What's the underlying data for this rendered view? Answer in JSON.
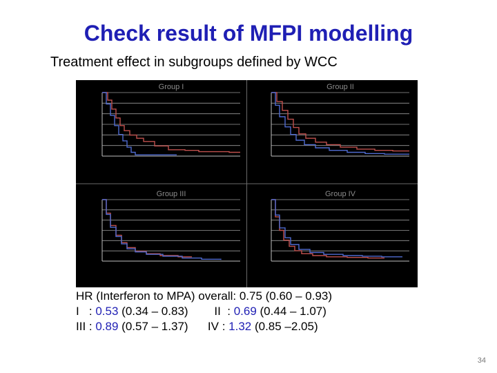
{
  "slide": {
    "title": "Check result of MFPI modelling",
    "subtitle": "Treatment effect in subgroups defined by WCC",
    "page_number": "34"
  },
  "hr": {
    "overall": "HR (Interferon to MPA) overall: 0.75 (0.60 – 0.93)",
    "groups": [
      {
        "label": "I   : ",
        "value": "0.53",
        "ci": " (0.34 – 0.83)"
      },
      {
        "label": "II  : ",
        "value": "0.69",
        "ci": " (0.44 – 1.07)"
      },
      {
        "label": "III : ",
        "value": "0.89",
        "ci": " (0.57 – 1.37)"
      },
      {
        "label": "IV : ",
        "value": "1.32",
        "ci": " (0.85 –2.05)"
      }
    ]
  },
  "colors": {
    "background": "#000000",
    "axis": "#bfbfbf",
    "panel_title": "#8c8c8c",
    "interferon": "#c0504d",
    "mpa": "#4f6bd0",
    "accent_text": "#1f1fb4"
  },
  "chart_data": {
    "type": "line",
    "grid": true,
    "panels": [
      {
        "title": "Group I",
        "series": [
          {
            "x": [
              0,
              0.04,
              0.07,
              0.1,
              0.13,
              0.16,
              0.2,
              0.25,
              0.3,
              0.38,
              0.48,
              0.6,
              0.7,
              0.82,
              0.92,
              1.0
            ],
            "y": [
              1.0,
              0.88,
              0.74,
              0.6,
              0.48,
              0.4,
              0.33,
              0.28,
              0.23,
              0.16,
              0.1,
              0.09,
              0.07,
              0.07,
              0.06,
              0.06
            ]
          },
          {
            "x": [
              0,
              0.03,
              0.06,
              0.09,
              0.12,
              0.15,
              0.18,
              0.21,
              0.24,
              0.3,
              0.4,
              0.5,
              0.54
            ],
            "y": [
              1.0,
              0.82,
              0.64,
              0.48,
              0.34,
              0.24,
              0.14,
              0.06,
              0.02,
              0.02,
              0.02,
              0.02,
              0.02
            ]
          }
        ]
      },
      {
        "title": "Group II",
        "series": [
          {
            "x": [
              0,
              0.04,
              0.08,
              0.12,
              0.16,
              0.2,
              0.25,
              0.32,
              0.4,
              0.5,
              0.62,
              0.75,
              0.88,
              1.0
            ],
            "y": [
              1.0,
              0.86,
              0.72,
              0.58,
              0.45,
              0.35,
              0.28,
              0.22,
              0.18,
              0.14,
              0.11,
              0.09,
              0.08,
              0.08
            ]
          },
          {
            "x": [
              0,
              0.03,
              0.06,
              0.1,
              0.14,
              0.18,
              0.24,
              0.32,
              0.42,
              0.55,
              0.68,
              0.82,
              0.95,
              1.0
            ],
            "y": [
              1.0,
              0.8,
              0.62,
              0.46,
              0.34,
              0.25,
              0.18,
              0.13,
              0.09,
              0.06,
              0.04,
              0.03,
              0.03,
              0.03
            ]
          }
        ]
      },
      {
        "title": "Group III",
        "series": [
          {
            "x": [
              0,
              0.03,
              0.06,
              0.1,
              0.14,
              0.18,
              0.24,
              0.32,
              0.42,
              0.55,
              0.65
            ],
            "y": [
              1.0,
              0.78,
              0.58,
              0.42,
              0.3,
              0.22,
              0.16,
              0.12,
              0.09,
              0.07,
              0.07
            ]
          },
          {
            "x": [
              0,
              0.03,
              0.06,
              0.1,
              0.14,
              0.18,
              0.24,
              0.32,
              0.44,
              0.58,
              0.72,
              0.86
            ],
            "y": [
              1.0,
              0.76,
              0.55,
              0.4,
              0.28,
              0.2,
              0.15,
              0.11,
              0.08,
              0.05,
              0.03,
              0.02
            ]
          }
        ]
      },
      {
        "title": "Group IV",
        "series": [
          {
            "x": [
              0,
              0.03,
              0.06,
              0.09,
              0.13,
              0.17,
              0.22,
              0.3,
              0.4,
              0.55,
              0.7,
              0.82
            ],
            "y": [
              1.0,
              0.72,
              0.5,
              0.34,
              0.24,
              0.17,
              0.12,
              0.09,
              0.07,
              0.06,
              0.05,
              0.05
            ]
          },
          {
            "x": [
              0,
              0.03,
              0.06,
              0.1,
              0.14,
              0.2,
              0.28,
              0.38,
              0.52,
              0.66,
              0.8,
              0.95
            ],
            "y": [
              1.0,
              0.75,
              0.54,
              0.38,
              0.27,
              0.19,
              0.14,
              0.11,
              0.09,
              0.08,
              0.07,
              0.07
            ]
          }
        ]
      }
    ],
    "xlim": [
      0,
      1
    ],
    "ylim": [
      0,
      1
    ]
  }
}
